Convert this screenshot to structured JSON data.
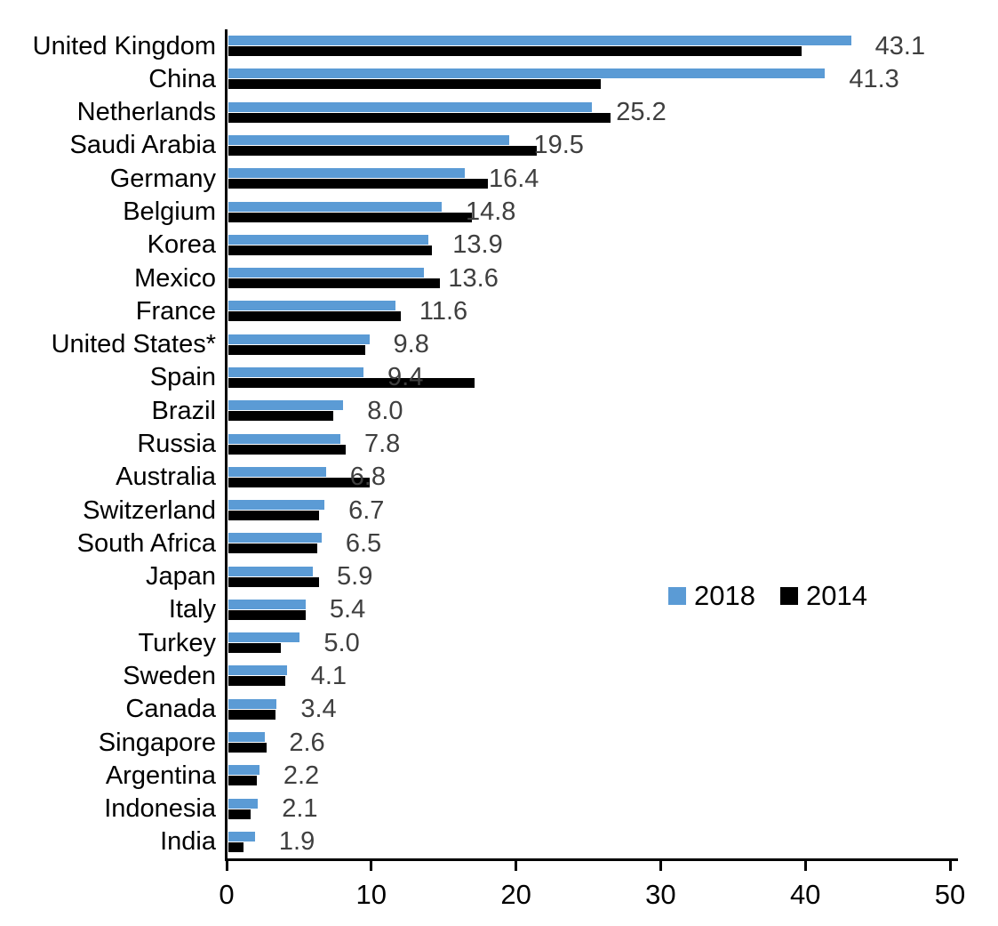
{
  "chart_data": {
    "type": "bar",
    "orientation": "horizontal",
    "title": "",
    "xlabel": "",
    "ylabel": "",
    "xlim": [
      0,
      50
    ],
    "x_ticks": [
      0,
      10,
      20,
      30,
      40,
      50
    ],
    "x_tick_labels": [
      "0",
      "10",
      "20",
      "30",
      "40",
      "50"
    ],
    "grid": false,
    "legend": {
      "position": "center-right",
      "entries": [
        "2018",
        "2014"
      ]
    },
    "categories": [
      "United Kingdom",
      "China",
      "Netherlands",
      "Saudi Arabia",
      "Germany",
      "Belgium",
      "Korea",
      "Mexico",
      "France",
      "United States*",
      "Spain",
      "Brazil",
      "Russia",
      "Australia",
      "Switzerland",
      "South Africa",
      "Japan",
      "Italy",
      "Turkey",
      "Sweden",
      "Canada",
      "Singapore",
      "Argentina",
      "Indonesia",
      "India"
    ],
    "series": [
      {
        "name": "2018",
        "color": "#5B9BD5",
        "values": [
          43.1,
          41.3,
          25.2,
          19.5,
          16.4,
          14.8,
          13.9,
          13.6,
          11.6,
          9.8,
          9.4,
          8.0,
          7.8,
          6.8,
          6.7,
          6.5,
          5.9,
          5.4,
          5.0,
          4.1,
          3.4,
          2.6,
          2.2,
          2.1,
          1.9
        ]
      },
      {
        "name": "2014",
        "color": "#000000",
        "values": [
          39.7,
          25.8,
          26.5,
          21.4,
          18.0,
          16.9,
          14.1,
          14.7,
          12.0,
          9.5,
          17.1,
          7.3,
          8.2,
          9.8,
          6.3,
          6.2,
          6.3,
          5.4,
          3.7,
          4.0,
          3.3,
          2.7,
          2.0,
          1.6,
          1.1
        ]
      }
    ],
    "data_labels": {
      "series": "2018",
      "color": "#3F3F3F",
      "values": [
        "43.1",
        "41.3",
        "25.2",
        "19.5",
        "16.4",
        "14.8",
        "13.9",
        "13.6",
        "11.6",
        "9.8",
        "9.4",
        "8.0",
        "7.8",
        "6.8",
        "6.7",
        "6.5",
        "5.9",
        "5.4",
        "5.0",
        "4.1",
        "3.4",
        "2.6",
        "2.2",
        "2.1",
        "1.9"
      ]
    }
  }
}
